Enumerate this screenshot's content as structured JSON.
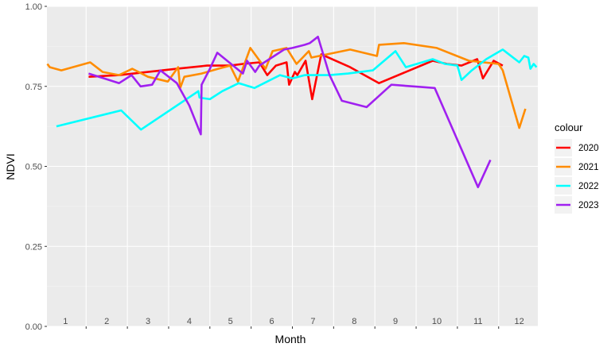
{
  "chart_data": {
    "type": "line",
    "title": "",
    "xlabel": "Month",
    "ylabel": "NDVI",
    "xlim": [
      0.55,
      12.45
    ],
    "ylim": [
      0,
      1
    ],
    "x_ticks": [
      "1",
      "2",
      "3",
      "4",
      "5",
      "6",
      "7",
      "8",
      "9",
      "10",
      "11",
      "12"
    ],
    "y_ticks": [
      "0.00",
      "0.25",
      "0.50",
      "0.75",
      "1.00"
    ],
    "grid": true,
    "legend": {
      "title": "colour",
      "position": "right"
    },
    "series": [
      {
        "name": "2020",
        "color": "#ff0000",
        "points": [
          [
            1.56,
            0.78
          ],
          [
            2.3,
            0.785
          ],
          [
            3.0,
            0.795
          ],
          [
            3.7,
            0.805
          ],
          [
            4.43,
            0.815
          ],
          [
            4.99,
            0.815
          ],
          [
            5.3,
            0.82
          ],
          [
            5.7,
            0.825
          ],
          [
            5.89,
            0.785
          ],
          [
            6.1,
            0.815
          ],
          [
            6.36,
            0.825
          ],
          [
            6.42,
            0.755
          ],
          [
            6.56,
            0.795
          ],
          [
            6.62,
            0.785
          ],
          [
            6.82,
            0.83
          ],
          [
            6.98,
            0.71
          ],
          [
            7.2,
            0.85
          ],
          [
            7.9,
            0.81
          ],
          [
            8.6,
            0.76
          ],
          [
            9.9,
            0.83
          ],
          [
            10.25,
            0.82
          ],
          [
            10.6,
            0.815
          ],
          [
            10.98,
            0.835
          ],
          [
            11.12,
            0.775
          ],
          [
            11.38,
            0.83
          ],
          [
            11.6,
            0.815
          ]
        ]
      },
      {
        "name": "2021",
        "color": "#ff8c00",
        "points": [
          [
            0.56,
            0.82
          ],
          [
            0.62,
            0.81
          ],
          [
            0.9,
            0.8
          ],
          [
            1.6,
            0.825
          ],
          [
            1.9,
            0.795
          ],
          [
            2.3,
            0.785
          ],
          [
            2.62,
            0.805
          ],
          [
            3.0,
            0.78
          ],
          [
            3.48,
            0.765
          ],
          [
            3.73,
            0.81
          ],
          [
            3.78,
            0.745
          ],
          [
            3.88,
            0.78
          ],
          [
            4.3,
            0.79
          ],
          [
            4.7,
            0.805
          ],
          [
            4.99,
            0.815
          ],
          [
            5.18,
            0.765
          ],
          [
            5.48,
            0.87
          ],
          [
            5.85,
            0.805
          ],
          [
            6.02,
            0.86
          ],
          [
            6.36,
            0.87
          ],
          [
            6.6,
            0.82
          ],
          [
            6.9,
            0.86
          ],
          [
            6.96,
            0.84
          ],
          [
            7.9,
            0.865
          ],
          [
            8.55,
            0.845
          ],
          [
            8.6,
            0.88
          ],
          [
            9.2,
            0.885
          ],
          [
            10.0,
            0.87
          ],
          [
            10.78,
            0.83
          ],
          [
            11.5,
            0.82
          ],
          [
            11.6,
            0.8
          ],
          [
            12.0,
            0.62
          ],
          [
            12.15,
            0.68
          ]
        ]
      },
      {
        "name": "2022",
        "color": "#00ffff",
        "points": [
          [
            0.78,
            0.625
          ],
          [
            2.35,
            0.675
          ],
          [
            2.83,
            0.615
          ],
          [
            4.22,
            0.735
          ],
          [
            4.25,
            0.715
          ],
          [
            4.5,
            0.71
          ],
          [
            4.8,
            0.735
          ],
          [
            5.2,
            0.76
          ],
          [
            5.58,
            0.745
          ],
          [
            6.2,
            0.785
          ],
          [
            6.5,
            0.775
          ],
          [
            6.8,
            0.785
          ],
          [
            7.4,
            0.785
          ],
          [
            7.85,
            0.79
          ],
          [
            8.45,
            0.8
          ],
          [
            9.0,
            0.86
          ],
          [
            9.25,
            0.81
          ],
          [
            9.9,
            0.835
          ],
          [
            10.2,
            0.82
          ],
          [
            10.5,
            0.815
          ],
          [
            10.6,
            0.77
          ],
          [
            10.85,
            0.8
          ],
          [
            11.2,
            0.835
          ],
          [
            11.4,
            0.85
          ],
          [
            11.6,
            0.865
          ],
          [
            12.0,
            0.825
          ],
          [
            12.12,
            0.845
          ],
          [
            12.22,
            0.84
          ],
          [
            12.27,
            0.805
          ],
          [
            12.35,
            0.82
          ],
          [
            12.42,
            0.81
          ]
        ]
      },
      {
        "name": "2023",
        "color": "#a020f0",
        "points": [
          [
            1.56,
            0.79
          ],
          [
            2.3,
            0.76
          ],
          [
            2.6,
            0.785
          ],
          [
            2.82,
            0.75
          ],
          [
            3.1,
            0.755
          ],
          [
            3.3,
            0.8
          ],
          [
            3.7,
            0.76
          ],
          [
            4.0,
            0.69
          ],
          [
            4.28,
            0.6
          ],
          [
            4.3,
            0.755
          ],
          [
            4.5,
            0.805
          ],
          [
            4.68,
            0.855
          ],
          [
            5.3,
            0.79
          ],
          [
            5.4,
            0.83
          ],
          [
            5.6,
            0.795
          ],
          [
            5.7,
            0.815
          ],
          [
            6.3,
            0.865
          ],
          [
            6.5,
            0.87
          ],
          [
            6.8,
            0.88
          ],
          [
            6.92,
            0.885
          ],
          [
            7.02,
            0.895
          ],
          [
            7.12,
            0.905
          ],
          [
            7.4,
            0.785
          ],
          [
            7.7,
            0.705
          ],
          [
            8.3,
            0.685
          ],
          [
            8.9,
            0.755
          ],
          [
            9.95,
            0.745
          ],
          [
            11.0,
            0.435
          ],
          [
            11.3,
            0.52
          ]
        ]
      }
    ]
  }
}
